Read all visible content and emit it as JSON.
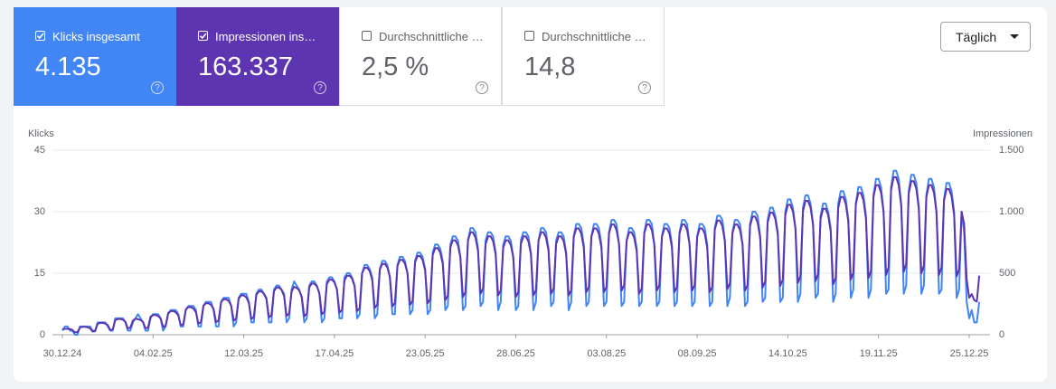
{
  "cards": [
    {
      "label": "Klicks insgesamt",
      "value": "4.135",
      "checked": true,
      "color": "#4285f4"
    },
    {
      "label": "Impressionen ins…",
      "value": "163.337",
      "checked": true,
      "color": "#5e35b1"
    },
    {
      "label": "Durchschnittliche …",
      "value": "2,5 %",
      "checked": false
    },
    {
      "label": "Durchschnittliche …",
      "value": "14,8",
      "checked": false
    }
  ],
  "dropdown": "Täglich",
  "chart_data": {
    "type": "line",
    "ylabel": "Klicks",
    "y2label": "Impressionen",
    "ylim": [
      0,
      45
    ],
    "yticks": [
      0,
      15,
      30,
      45
    ],
    "y2lim": [
      0,
      1500
    ],
    "y2ticks": [
      0,
      500,
      {
        "value": 1000,
        "label": "1.000"
      },
      {
        "value": 1500,
        "label": "1.500"
      }
    ],
    "grid": true,
    "categories": [
      "30.12.24",
      null,
      null,
      null,
      null,
      null,
      null,
      null,
      null,
      null,
      null,
      null,
      null,
      null,
      null,
      null,
      null,
      null,
      null,
      null,
      null,
      null,
      null,
      null,
      null,
      null,
      null,
      null,
      null,
      null,
      null,
      null,
      null,
      null,
      null,
      null,
      "04.02.25",
      null,
      null,
      null,
      null,
      null,
      null,
      null,
      null,
      null,
      null,
      null,
      null,
      null,
      null,
      null,
      null,
      null,
      null,
      null,
      null,
      null,
      null,
      null,
      null,
      null,
      null,
      null,
      null,
      null,
      null,
      null,
      null,
      null,
      null,
      null,
      "12.03.25",
      null,
      null,
      null,
      null,
      null,
      null,
      null,
      null,
      null,
      null,
      null,
      null,
      null,
      null,
      null,
      null,
      null,
      null,
      null,
      null,
      null,
      null,
      null,
      null,
      null,
      null,
      null,
      null,
      null,
      null,
      null,
      null,
      null,
      null,
      null,
      "17.04.25",
      null,
      null,
      null,
      null,
      null,
      null,
      null,
      null,
      null,
      null,
      null,
      null,
      null,
      null,
      null,
      null,
      null,
      null,
      null,
      null,
      null,
      null,
      null,
      null,
      null,
      null,
      null,
      null,
      null,
      null,
      null,
      null,
      null,
      null,
      null,
      "23.05.25",
      null,
      null,
      null,
      null,
      null,
      null,
      null,
      null,
      null,
      null,
      null,
      null,
      null,
      null,
      null,
      null,
      null,
      null,
      null,
      null,
      null,
      null,
      null,
      null,
      null,
      null,
      null,
      null,
      null,
      null,
      null,
      null,
      null,
      null,
      null,
      "28.06.25",
      null,
      null,
      null,
      null,
      null,
      null,
      null,
      null,
      null,
      null,
      null,
      null,
      null,
      null,
      null,
      null,
      null,
      null,
      null,
      null,
      null,
      null,
      null,
      null,
      null,
      null,
      null,
      null,
      null,
      null,
      null,
      null,
      null,
      null,
      null,
      "03.08.25",
      null,
      null,
      null,
      null,
      null,
      null,
      null,
      null,
      null,
      null,
      null,
      null,
      null,
      null,
      null,
      null,
      null,
      null,
      null,
      null,
      null,
      null,
      null,
      null,
      null,
      null,
      null,
      null,
      null,
      null,
      null,
      null,
      null,
      null,
      null,
      "08.09.25",
      null,
      null,
      null,
      null,
      null,
      null,
      null,
      null,
      null,
      null,
      null,
      null,
      null,
      null,
      null,
      null,
      null,
      null,
      null,
      null,
      null,
      null,
      null,
      null,
      null,
      null,
      null,
      null,
      null,
      null,
      null,
      null,
      null,
      null,
      null,
      "14.10.25",
      null,
      null,
      null,
      null,
      null,
      null,
      null,
      null,
      null,
      null,
      null,
      null,
      null,
      null,
      null,
      null,
      null,
      null,
      null,
      null,
      null,
      null,
      null,
      null,
      null,
      null,
      null,
      null,
      null,
      null,
      null,
      null,
      null,
      null,
      null,
      "19.11.25",
      null,
      null,
      null,
      null,
      null,
      null,
      null,
      null,
      null,
      null,
      null,
      null,
      null,
      null,
      null,
      null,
      null,
      null,
      null,
      null,
      null,
      null,
      null,
      null,
      null,
      null,
      null,
      null,
      null,
      null,
      null,
      null,
      null,
      null,
      null,
      "25.12.25",
      null,
      null,
      null,
      null
    ],
    "series": [
      {
        "color": "#4285f4",
        "values": [
          1,
          2,
          2,
          1,
          1,
          0,
          0,
          2,
          2,
          2,
          2,
          2,
          1,
          1,
          3,
          3,
          3,
          3,
          2,
          1,
          1,
          4,
          4,
          4,
          4,
          3,
          1,
          1,
          3,
          4,
          5,
          4,
          3,
          1,
          1,
          4,
          5,
          5,
          5,
          4,
          1,
          2,
          5,
          6,
          6,
          6,
          5,
          2,
          2,
          6,
          7,
          7,
          7,
          6,
          2,
          2,
          7,
          8,
          8,
          8,
          6,
          2,
          2,
          8,
          9,
          9,
          9,
          7,
          2,
          3,
          9,
          10,
          10,
          10,
          8,
          3,
          3,
          10,
          11,
          11,
          10,
          9,
          3,
          3,
          11,
          12,
          12,
          11,
          10,
          3,
          4,
          11,
          13,
          12,
          11,
          9,
          3,
          4,
          12,
          13,
          13,
          12,
          10,
          3,
          4,
          13,
          14,
          14,
          13,
          11,
          4,
          4,
          14,
          15,
          15,
          14,
          12,
          4,
          5,
          15,
          17,
          17,
          16,
          14,
          4,
          5,
          16,
          18,
          18,
          17,
          14,
          5,
          5,
          17,
          19,
          19,
          18,
          15,
          5,
          6,
          18,
          20,
          20,
          19,
          16,
          5,
          6,
          20,
          22,
          22,
          21,
          18,
          6,
          7,
          22,
          24,
          24,
          23,
          19,
          6,
          7,
          23,
          26,
          26,
          25,
          21,
          7,
          8,
          23,
          25,
          25,
          24,
          20,
          6,
          8,
          22,
          24,
          24,
          23,
          19,
          6,
          7,
          23,
          25,
          25,
          24,
          20,
          6,
          8,
          23,
          26,
          26,
          25,
          21,
          7,
          8,
          23,
          25,
          25,
          24,
          20,
          6,
          8,
          24,
          27,
          27,
          26,
          22,
          7,
          8,
          24,
          27,
          27,
          26,
          22,
          7,
          8,
          25,
          28,
          28,
          27,
          22,
          7,
          8,
          23,
          26,
          26,
          25,
          21,
          7,
          8,
          25,
          28,
          28,
          27,
          22,
          7,
          8,
          24,
          27,
          27,
          26,
          22,
          7,
          8,
          25,
          28,
          28,
          27,
          22,
          7,
          8,
          24,
          27,
          27,
          26,
          22,
          7,
          8,
          26,
          29,
          29,
          28,
          23,
          7,
          9,
          25,
          28,
          28,
          27,
          22,
          7,
          8,
          27,
          30,
          30,
          29,
          24,
          8,
          9,
          28,
          31,
          31,
          29,
          25,
          8,
          9,
          30,
          33,
          33,
          31,
          26,
          8,
          10,
          31,
          34,
          34,
          32,
          27,
          9,
          10,
          29,
          32,
          32,
          30,
          26,
          8,
          10,
          32,
          35,
          35,
          33,
          28,
          9,
          11,
          32,
          36,
          36,
          34,
          29,
          9,
          11,
          34,
          38,
          38,
          36,
          30,
          10,
          11,
          36,
          40,
          40,
          38,
          32,
          10,
          12,
          35,
          39,
          39,
          37,
          31,
          10,
          12,
          34,
          38,
          38,
          36,
          30,
          10,
          11,
          33,
          37,
          37,
          35,
          30,
          9,
          11,
          30,
          25,
          8,
          4,
          6,
          3,
          3,
          8
        ]
      },
      {
        "color": "#5e35b1",
        "axis": "y2",
        "values": [
          44,
          48,
          48,
          46,
          39,
          19,
          22,
          59,
          64,
          64,
          61,
          52,
          26,
          29,
          88,
          96,
          96,
          91,
          79,
          38,
          43,
          118,
          128,
          128,
          122,
          105,
          51,
          58,
          115,
          130,
          126,
          120,
          104,
          52,
          57,
          147,
          160,
          160,
          152,
          131,
          64,
          72,
          177,
          192,
          192,
          182,
          157,
          77,
          86,
          206,
          224,
          224,
          213,
          184,
          90,
          101,
          236,
          256,
          256,
          243,
          210,
          102,
          115,
          265,
          288,
          288,
          274,
          236,
          115,
          130,
          294,
          320,
          320,
          304,
          262,
          128,
          144,
          324,
          352,
          352,
          334,
          289,
          141,
          158,
          353,
          384,
          384,
          365,
          315,
          154,
          173,
          350,
          390,
          380,
          362,
          312,
          150,
          170,
          383,
          416,
          416,
          395,
          341,
          166,
          187,
          412,
          448,
          448,
          426,
          367,
          179,
          202,
          442,
          480,
          480,
          456,
          394,
          192,
          216,
          500,
          544,
          544,
          517,
          446,
          218,
          245,
          530,
          576,
          576,
          547,
          472,
          230,
          259,
          559,
          608,
          608,
          578,
          499,
          243,
          274,
          589,
          640,
          640,
          608,
          525,
          256,
          288,
          648,
          704,
          704,
          669,
          577,
          282,
          317,
          707,
          768,
          768,
          730,
          630,
          307,
          346,
          765,
          832,
          832,
          790,
          682,
          333,
          374,
          736,
          800,
          800,
          760,
          656,
          320,
          360,
          707,
          768,
          768,
          730,
          630,
          307,
          346,
          736,
          800,
          800,
          760,
          656,
          320,
          360,
          765,
          832,
          832,
          790,
          682,
          333,
          374,
          736,
          800,
          800,
          760,
          656,
          320,
          360,
          795,
          864,
          864,
          821,
          708,
          346,
          389,
          795,
          864,
          864,
          821,
          708,
          346,
          389,
          824,
          896,
          896,
          851,
          735,
          358,
          403,
          765,
          832,
          832,
          790,
          682,
          333,
          374,
          824,
          896,
          896,
          851,
          735,
          358,
          403,
          795,
          864,
          864,
          821,
          708,
          346,
          389,
          824,
          896,
          896,
          851,
          735,
          358,
          403,
          795,
          864,
          864,
          821,
          708,
          346,
          389,
          854,
          928,
          928,
          882,
          761,
          371,
          418,
          824,
          896,
          896,
          851,
          735,
          358,
          403,
          883,
          960,
          960,
          912,
          787,
          384,
          432,
          913,
          992,
          992,
          942,
          813,
          397,
          446,
          972,
          1056,
          1056,
          1003,
          866,
          422,
          475,
          1001,
          1088,
          1088,
          1034,
          892,
          435,
          490,
          942,
          1024,
          1024,
          973,
          840,
          410,
          461,
          1030,
          1120,
          1120,
          1064,
          918,
          448,
          504,
          1060,
          1152,
          1152,
          1094,
          945,
          461,
          518,
          1119,
          1216,
          1216,
          1155,
          997,
          486,
          547,
          1178,
          1280,
          1280,
          1216,
          1050,
          512,
          576,
          1148,
          1248,
          1248,
          1186,
          1023,
          499,
          562,
          1119,
          1216,
          1216,
          1155,
          997,
          486,
          547,
          1089,
          1184,
          1184,
          1125,
          971,
          474,
          533,
          1000,
          900,
          450,
          300,
          330,
          280,
          270,
          480
        ]
      }
    ]
  }
}
